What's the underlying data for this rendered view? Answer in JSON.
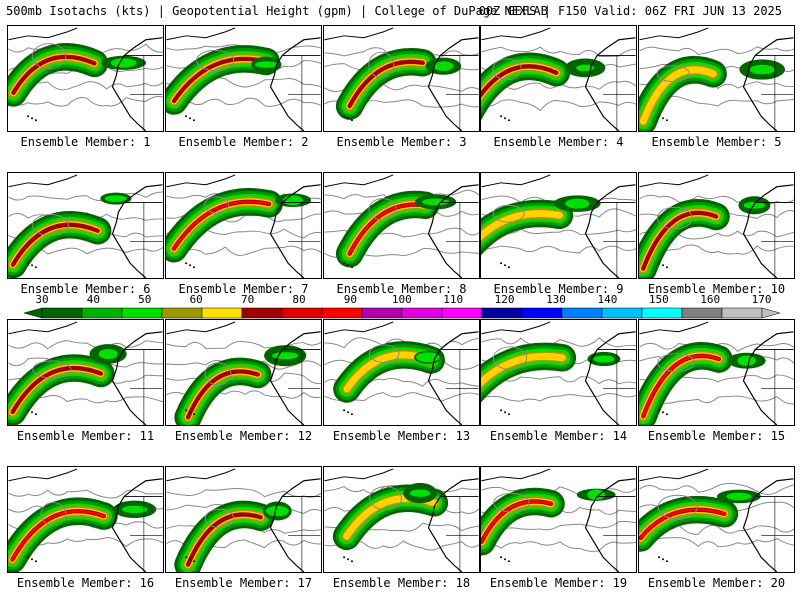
{
  "header": {
    "left": "500mb Isotachs (kts) | Geopotential Height (gpm) | College of DuPage NEXLAB",
    "right": "00Z GEFS | F150 Valid: 06Z FRI JUN 13 2025"
  },
  "colors": {
    "land_outline": "#000000",
    "height_contour": "#888888",
    "band_30_40": "#006400",
    "band_40_50": "#009a00",
    "band_50_60": "#00e000",
    "band_60_70": "#a09a00",
    "band_70_80": "#ffd200",
    "band_80_90": "#a00000",
    "band_90_100": "#ff0000"
  },
  "legend": {
    "labels": [
      "30",
      "40",
      "50",
      "60",
      "70",
      "80",
      "90",
      "100",
      "110",
      "120",
      "130",
      "140",
      "150",
      "160",
      "170"
    ],
    "swatches": [
      "#006400",
      "#00b000",
      "#00e000",
      "#9a9a00",
      "#ffe000",
      "#a00000",
      "#e00000",
      "#ff0000",
      "#b000b0",
      "#e000e0",
      "#ff00ff",
      "#0000a0",
      "#0000ff",
      "#0080ff",
      "#00c0ff",
      "#00ffff",
      "#808080",
      "#c0c0c0"
    ]
  },
  "members": [
    {
      "label": "Ensemble Member: 1",
      "intensity": 2
    },
    {
      "label": "Ensemble Member: 2",
      "intensity": 2
    },
    {
      "label": "Ensemble Member: 3",
      "intensity": 2
    },
    {
      "label": "Ensemble Member: 4",
      "intensity": 2
    },
    {
      "label": "Ensemble Member: 5",
      "intensity": 1
    },
    {
      "label": "Ensemble Member: 6",
      "intensity": 2
    },
    {
      "label": "Ensemble Member: 7",
      "intensity": 3
    },
    {
      "label": "Ensemble Member: 8",
      "intensity": 3
    },
    {
      "label": "Ensemble Member: 9",
      "intensity": 1
    },
    {
      "label": "Ensemble Member: 10",
      "intensity": 2
    },
    {
      "label": "Ensemble Member: 11",
      "intensity": 2
    },
    {
      "label": "Ensemble Member: 12",
      "intensity": 2
    },
    {
      "label": "Ensemble Member: 13",
      "intensity": 1
    },
    {
      "label": "Ensemble Member: 14",
      "intensity": 1
    },
    {
      "label": "Ensemble Member: 15",
      "intensity": 3
    },
    {
      "label": "Ensemble Member: 16",
      "intensity": 3
    },
    {
      "label": "Ensemble Member: 17",
      "intensity": 2
    },
    {
      "label": "Ensemble Member: 18",
      "intensity": 1
    },
    {
      "label": "Ensemble Member: 19",
      "intensity": 3
    },
    {
      "label": "Ensemble Member: 20",
      "intensity": 3
    }
  ]
}
